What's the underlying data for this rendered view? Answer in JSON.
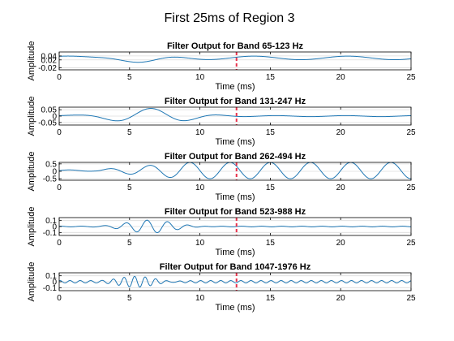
{
  "figure_title": "First 25ms of Region 3",
  "colors": {
    "signal": "#1f77b4",
    "marker": "#e8314b",
    "grid": "#dcdcdc",
    "axis": "#000000"
  },
  "chart_data": [
    {
      "type": "line",
      "title": "Filter Output for Band 65-123 Hz",
      "xlabel": "Time (ms)",
      "ylabel": "Amplitude",
      "xlim": [
        0,
        25
      ],
      "ylim": [
        -0.03,
        0.06
      ],
      "xticks": [
        0,
        5,
        10,
        15,
        20,
        25
      ],
      "yticks": [
        -0.02,
        0.02,
        0.04
      ],
      "ytick_labels": [
        "-0.02",
        "0.02",
        "0.04"
      ],
      "grid": "horizontal",
      "marker_x": 12.6,
      "signal": {
        "model": "burst",
        "amp": 0.026,
        "freq_khz": 0.12,
        "center_ms": 5.5,
        "width_ms": 2.6,
        "offset": 0.03,
        "background_amp": 0.009,
        "background_freq_khz": 0.15
      }
    },
    {
      "type": "line",
      "title": "Filter Output for Band 131-247 Hz",
      "xlabel": "Time (ms)",
      "ylabel": "Amplitude",
      "xlim": [
        0,
        25
      ],
      "ylim": [
        -0.07,
        0.07
      ],
      "xticks": [
        0,
        5,
        10,
        15,
        20,
        25
      ],
      "yticks": [
        -0.05,
        0,
        0.05
      ],
      "ytick_labels": [
        "-0.05",
        "0",
        "0.05"
      ],
      "grid": "horizontal",
      "marker_x": 12.6,
      "signal": {
        "model": "burst",
        "amp": 0.06,
        "freq_khz": 0.19,
        "center_ms": 6.5,
        "width_ms": 3.5,
        "offset": 0,
        "background_amp": 0.004,
        "background_freq_khz": 0.2
      }
    },
    {
      "type": "line",
      "title": "Filter Output for Band 262-494 Hz",
      "xlabel": "Time (ms)",
      "ylabel": "Amplitude",
      "xlim": [
        0,
        25
      ],
      "ylim": [
        -0.6,
        0.6
      ],
      "xticks": [
        0,
        5,
        10,
        15,
        20,
        25
      ],
      "yticks": [
        -0.5,
        0,
        0.5
      ],
      "ytick_labels": [
        "-0.5",
        "0",
        "0.5"
      ],
      "grid": "horizontal",
      "marker_x": 12.6,
      "signal": {
        "model": "ramp",
        "amp": 0.55,
        "freq_khz": 0.35,
        "ramp_start_ms": 2.5,
        "ramp_end_ms": 9,
        "offset": 0.05
      }
    },
    {
      "type": "line",
      "title": "Filter Output for Band 523-988 Hz",
      "xlabel": "Time (ms)",
      "ylabel": "Amplitude",
      "xlim": [
        0,
        25
      ],
      "ylim": [
        -0.15,
        0.15
      ],
      "xticks": [
        0,
        5,
        10,
        15,
        20,
        25
      ],
      "yticks": [
        -0.1,
        0,
        0.1
      ],
      "ytick_labels": [
        "-0.1",
        "0",
        "0.1"
      ],
      "grid": "horizontal",
      "marker_x": 12.6,
      "signal": {
        "model": "burst",
        "amp": 0.11,
        "freq_khz": 0.68,
        "center_ms": 6.5,
        "width_ms": 2.3,
        "offset": 0,
        "background_amp": 0.006,
        "background_freq_khz": 0.7
      }
    },
    {
      "type": "line",
      "title": "Filter Output for Band 1047-1976 Hz",
      "xlabel": "Time (ms)",
      "ylabel": "Amplitude",
      "xlim": [
        0,
        25
      ],
      "ylim": [
        -0.15,
        0.15
      ],
      "xticks": [
        0,
        5,
        10,
        15,
        20,
        25
      ],
      "yticks": [
        -0.1,
        0,
        0.1
      ],
      "ytick_labels": [
        "-0.1",
        "0",
        "0.1"
      ],
      "grid": "horizontal",
      "marker_x": 12.6,
      "signal": {
        "model": "burst",
        "amp": 0.11,
        "freq_khz": 1.35,
        "center_ms": 5.5,
        "width_ms": 2.0,
        "offset": 0,
        "background_amp": 0.02,
        "background_freq_khz": 1.4
      }
    }
  ]
}
